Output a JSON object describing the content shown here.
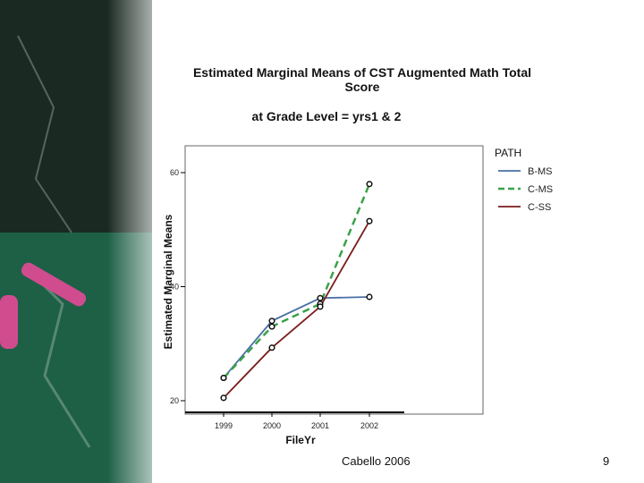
{
  "slide": {
    "title_line1": "Estimated Marginal Means of CST Augmented Math Total",
    "title_line2": "Score",
    "subtitle": "at Grade Level = yrs1 & 2",
    "footer": "Cabello 2006",
    "page_number": "9"
  },
  "chart_data": {
    "type": "line",
    "title": "Estimated Marginal Means of CST Augmented Math Total Score",
    "subtitle": "at Grade Level = yrs1 & 2",
    "xlabel": "FileYr",
    "ylabel": "Estimated Marginal Means",
    "categories": [
      "1999",
      "2000",
      "2001",
      "2002"
    ],
    "y_ticks": [
      20,
      40,
      60
    ],
    "ylim": [
      20,
      60
    ],
    "legend_title": "PATH",
    "legend_position": "top-right",
    "series": [
      {
        "name": "B-MS",
        "color": "#4a6fa5",
        "dash": "solid",
        "values": [
          24,
          34,
          38,
          38.2
        ]
      },
      {
        "name": "C-MS",
        "color": "#3aa14a",
        "dash": "dashed",
        "values": [
          24,
          33,
          37,
          58
        ]
      },
      {
        "name": "C-SS",
        "color": "#7a1c1c",
        "dash": "solid",
        "values": [
          20.5,
          29.3,
          36.5,
          51.5
        ]
      }
    ]
  }
}
